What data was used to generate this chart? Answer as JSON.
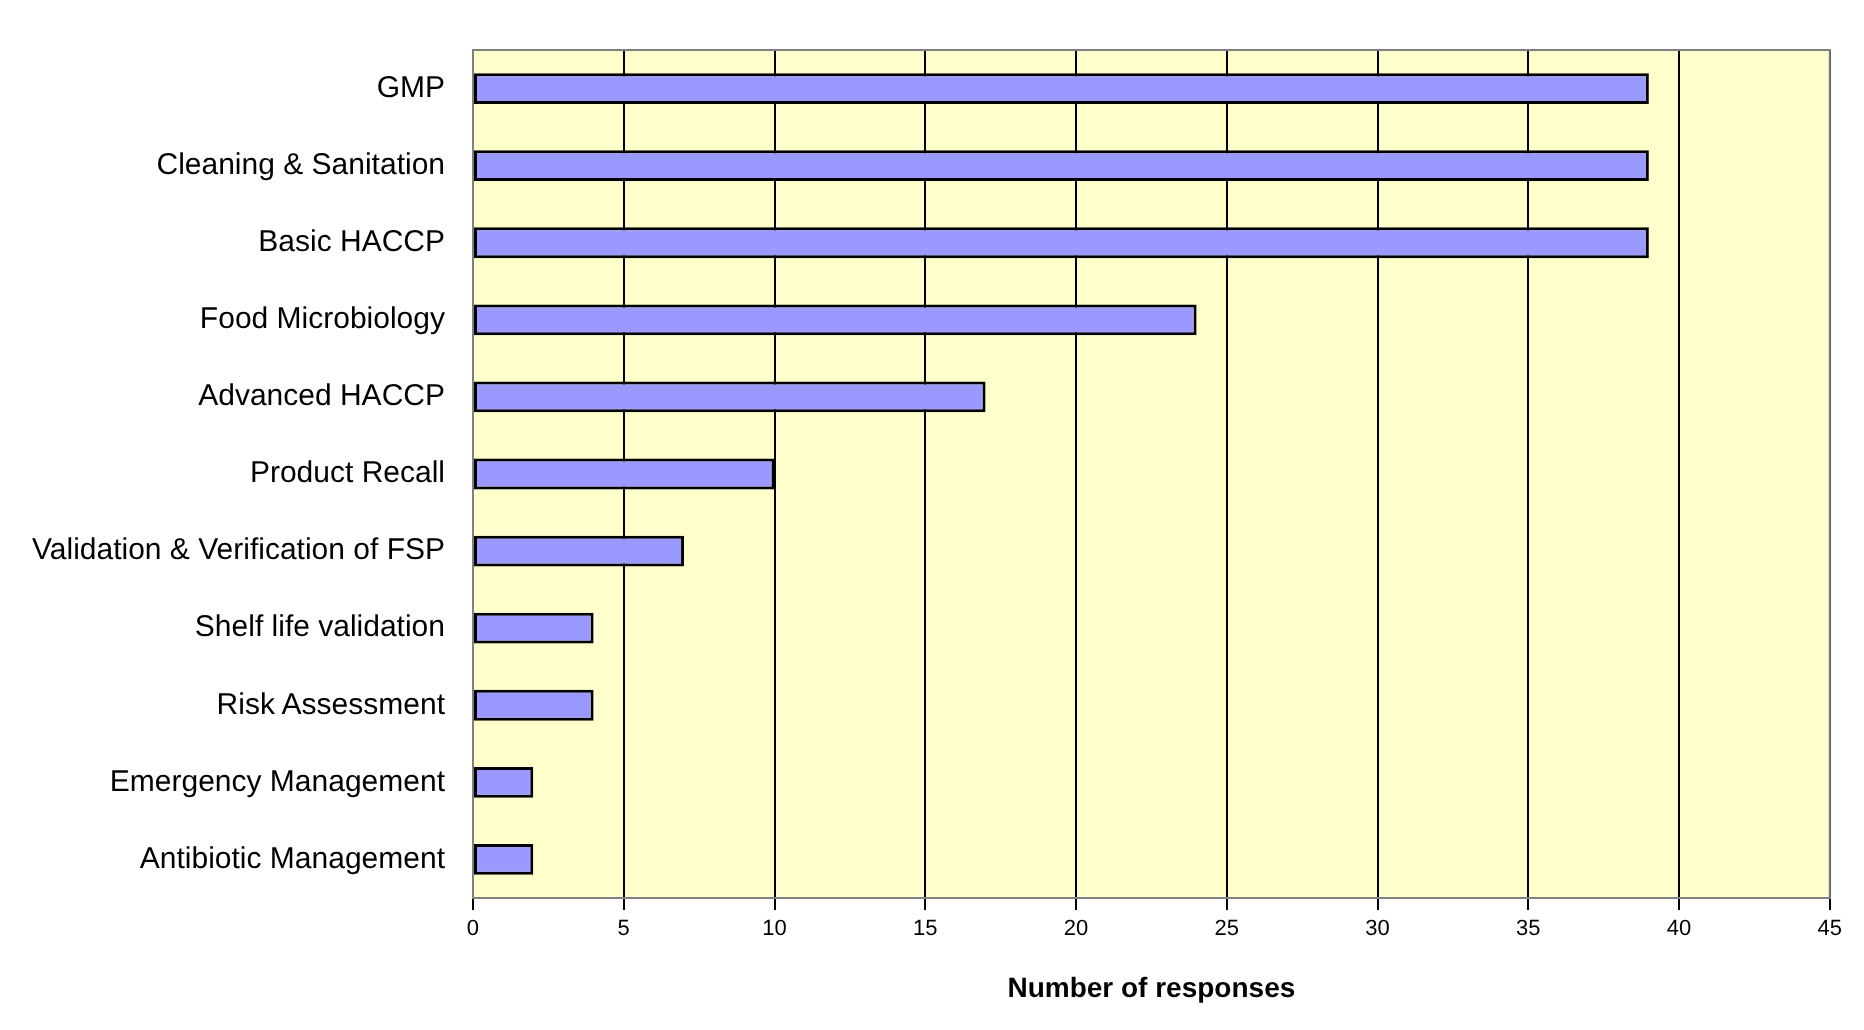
{
  "chart_data": {
    "type": "bar",
    "orientation": "horizontal",
    "xlabel": "Number of responses",
    "categories": [
      "GMP",
      "Cleaning & Sanitation",
      "Basic HACCP",
      "Food Microbiology",
      "Advanced HACCP",
      "Product Recall",
      "Validation & Verification of FSP",
      "Shelf life validation",
      "Risk Assessment",
      "Emergency Management",
      "Antibiotic Management"
    ],
    "values": [
      39,
      39,
      39,
      24,
      17,
      10,
      7,
      4,
      4,
      2,
      2
    ],
    "color": "#9999ff",
    "xlim": [
      0,
      45
    ],
    "xticks": [
      0,
      5,
      10,
      15,
      20,
      25,
      30,
      35,
      40,
      45
    ],
    "grid": "x",
    "legend": false
  }
}
